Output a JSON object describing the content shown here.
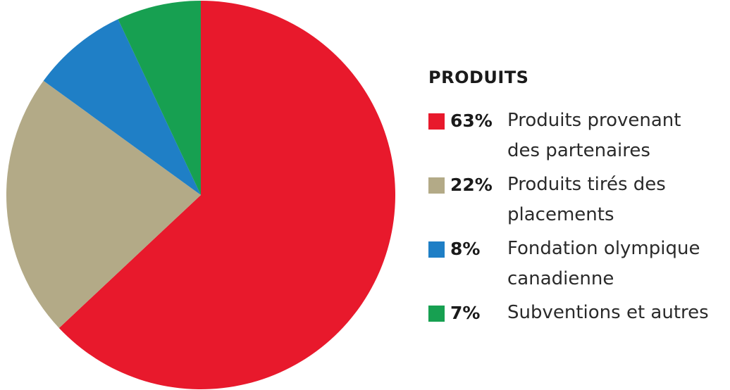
{
  "chart_data": {
    "type": "pie",
    "title": "PRODUITS",
    "slices": [
      {
        "percent": "63%",
        "label": "Produits provenant\ndes partenaires",
        "value": 63,
        "color": "#e8192c"
      },
      {
        "percent": "22%",
        "label": "Produits tirés des\nplacements",
        "value": 22,
        "color": "#b3aa87"
      },
      {
        "percent": "8%",
        "label": "Fondation olympique\ncanadienne",
        "value": 8,
        "color": "#1f7fc6"
      },
      {
        "percent": "7%",
        "label": "Subventions et autres",
        "value": 7,
        "color": "#17a051"
      }
    ]
  }
}
